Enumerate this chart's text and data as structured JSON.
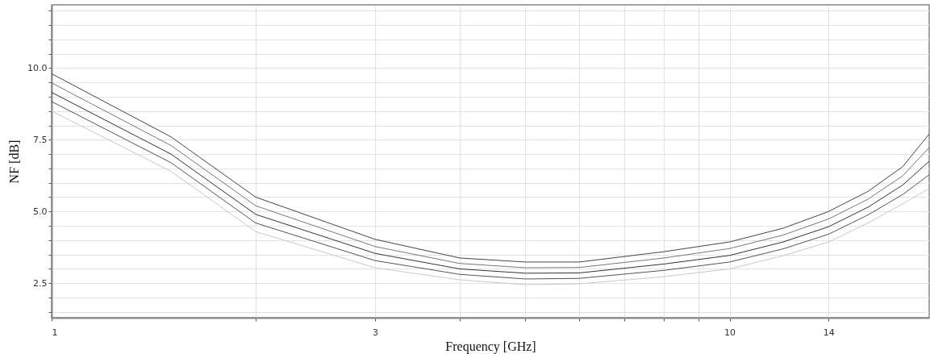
{
  "chart_data": {
    "type": "line",
    "xlabel": "Frequency [GHz]",
    "ylabel": "NF [dB]",
    "log": "x",
    "grid": true,
    "marker": "none",
    "line_style": "solid",
    "x": [
      1,
      1.5,
      2,
      3,
      4,
      5,
      6,
      8,
      10,
      12,
      14,
      16,
      18,
      19.7
    ],
    "xlim": [
      1,
      19.7
    ],
    "xticks": [
      1,
      {
        "value": 2,
        "label": null
      },
      3,
      {
        "value": 4,
        "label": null
      },
      {
        "value": 5,
        "label": null
      },
      {
        "value": 6,
        "label": null
      },
      {
        "value": 7,
        "label": null
      },
      {
        "value": 8,
        "label": null
      },
      {
        "value": 9,
        "label": null
      },
      10,
      14
    ],
    "ylim": [
      1.3,
      12.2
    ],
    "yticks": [
      {
        "value": 1.5,
        "label": null
      },
      {
        "value": 2,
        "label": null
      },
      {
        "value": 2.5,
        "label": "2.5"
      },
      {
        "value": 3,
        "label": null
      },
      {
        "value": 3.5,
        "label": null
      },
      {
        "value": 4,
        "label": null
      },
      {
        "value": 4.5,
        "label": null
      },
      {
        "value": 5,
        "label": "5.0"
      },
      {
        "value": 5.5,
        "label": null
      },
      {
        "value": 6,
        "label": null
      },
      {
        "value": 6.5,
        "label": null
      },
      {
        "value": 7,
        "label": null
      },
      {
        "value": 7.5,
        "label": "7.5"
      },
      {
        "value": 8,
        "label": null
      },
      {
        "value": 8.5,
        "label": null
      },
      {
        "value": 9,
        "label": null
      },
      {
        "value": 9.5,
        "label": null
      },
      {
        "value": 10,
        "label": "10.0"
      },
      {
        "value": 10.5,
        "label": null
      },
      {
        "value": 11,
        "label": null
      },
      {
        "value": 11.5,
        "label": null
      },
      {
        "value": 12,
        "label": null
      }
    ],
    "series": [
      {
        "color": "#c8c8c8",
        "values": [
          8.5,
          6.4,
          4.3,
          3.04,
          2.62,
          2.45,
          2.48,
          2.73,
          3.0,
          3.46,
          3.94,
          4.6,
          5.27,
          5.8
        ]
      },
      {
        "color": "#555555",
        "values": [
          8.83,
          6.7,
          4.6,
          3.29,
          2.81,
          2.65,
          2.67,
          2.95,
          3.24,
          3.7,
          4.21,
          4.88,
          5.59,
          6.28
        ]
      },
      {
        "color": "#333333",
        "values": [
          9.15,
          7.0,
          4.9,
          3.54,
          3.0,
          2.85,
          2.86,
          3.17,
          3.47,
          3.94,
          4.47,
          5.15,
          5.92,
          6.75
        ]
      },
      {
        "color": "#777777",
        "values": [
          9.48,
          7.3,
          5.2,
          3.78,
          3.19,
          3.04,
          3.05,
          3.38,
          3.71,
          4.18,
          4.74,
          5.43,
          6.24,
          7.23
        ]
      },
      {
        "color": "#444444",
        "values": [
          9.8,
          7.6,
          5.5,
          4.03,
          3.38,
          3.24,
          3.24,
          3.6,
          3.94,
          4.42,
          5.0,
          5.7,
          6.56,
          7.7
        ]
      }
    ]
  }
}
